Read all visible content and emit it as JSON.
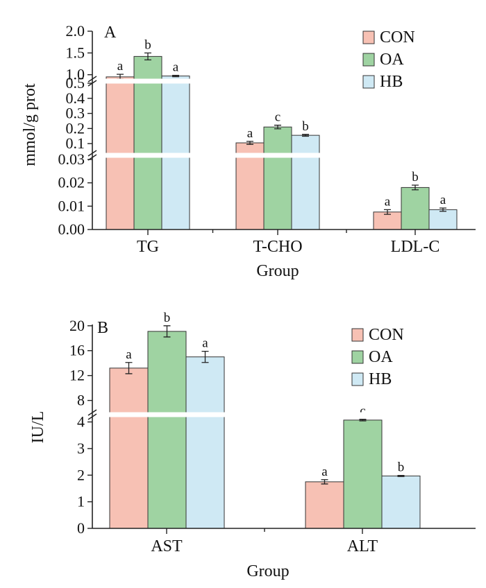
{
  "colors": {
    "CON": "#f7c1b4",
    "OA": "#9fd3a2",
    "HB": "#cfe9f4"
  },
  "chart_data": [
    {
      "panel": "A",
      "type": "bar",
      "xlabel": "Group",
      "ylabel": "mmol/g prot",
      "broken_axis": true,
      "categories": [
        "TG",
        "T-CHO",
        "LDL-C"
      ],
      "legend": [
        "CON",
        "OA",
        "HB"
      ],
      "legend_position": "top-right",
      "segments": [
        {
          "range": [
            0,
            0.03
          ],
          "ticks": [
            "0.00",
            "0.01",
            "0.02",
            "0.03"
          ]
        },
        {
          "range": [
            0.05,
            0.5
          ],
          "ticks": [
            "0.1",
            "0.2",
            "0.3",
            "0.4",
            "0.5"
          ]
        },
        {
          "range": [
            0.9,
            2.0
          ],
          "ticks": [
            "1.0",
            "1.5",
            "2.0"
          ]
        }
      ],
      "series": [
        {
          "name": "CON",
          "values": [
            0.95,
            0.105,
            0.0075
          ],
          "errors": [
            0.06,
            0.01,
            0.001
          ],
          "labels": [
            "a",
            "a",
            "a"
          ]
        },
        {
          "name": "OA",
          "values": [
            1.42,
            0.21,
            0.018
          ],
          "errors": [
            0.08,
            0.012,
            0.001
          ],
          "labels": [
            "b",
            "c",
            "b"
          ]
        },
        {
          "name": "HB",
          "values": [
            0.97,
            0.155,
            0.0085
          ],
          "errors": [
            0.015,
            0.006,
            0.0007
          ],
          "labels": [
            "a",
            "b",
            "a"
          ]
        }
      ]
    },
    {
      "panel": "B",
      "type": "bar",
      "xlabel": "Group",
      "ylabel": "IU/L",
      "broken_axis": true,
      "categories": [
        "AST",
        "ALT"
      ],
      "legend": [
        "CON",
        "OA",
        "HB"
      ],
      "legend_position": "top-right",
      "segments": [
        {
          "range": [
            0,
            4.3
          ],
          "ticks": [
            "0",
            "1",
            "2",
            "3",
            "4"
          ]
        },
        {
          "range": [
            5.5,
            20.2
          ],
          "ticks": [
            "8",
            "12",
            "16",
            "20"
          ]
        }
      ],
      "series": [
        {
          "name": "CON",
          "values": [
            13.2,
            1.75
          ],
          "errors": [
            0.9,
            0.08
          ],
          "labels": [
            "a",
            "a"
          ]
        },
        {
          "name": "OA",
          "values": [
            19.1,
            4.07
          ],
          "errors": [
            0.9,
            0.03
          ],
          "labels": [
            "b",
            "c"
          ]
        },
        {
          "name": "HB",
          "values": [
            15.0,
            1.97
          ],
          "errors": [
            0.9,
            0.02
          ],
          "labels": [
            "a",
            "b"
          ]
        }
      ]
    }
  ]
}
